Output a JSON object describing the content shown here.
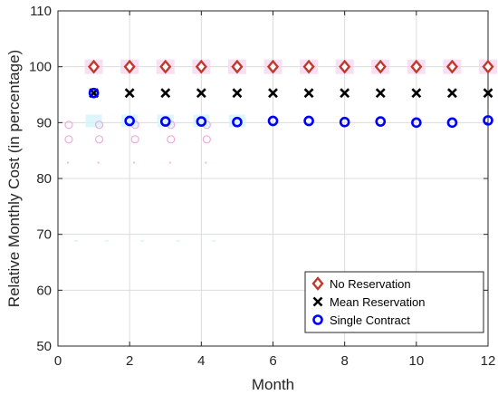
{
  "chart_data": {
    "type": "scatter",
    "title": "",
    "xlabel": "Month",
    "ylabel": "Relative Monthly Cost (in percentage)",
    "xlim": [
      0,
      12
    ],
    "ylim": [
      50,
      110
    ],
    "xticks": [
      0,
      2,
      4,
      6,
      8,
      10,
      12
    ],
    "yticks": [
      50,
      60,
      70,
      80,
      90,
      100,
      110
    ],
    "grid": true,
    "legend_position": "bottom-right",
    "series": [
      {
        "name": "No Reservation",
        "marker": "diamond",
        "color": "#c0392b",
        "x": [
          1,
          2,
          3,
          4,
          5,
          6,
          7,
          8,
          9,
          10,
          11,
          12
        ],
        "y": [
          100,
          100,
          100,
          100,
          100,
          100,
          100,
          100,
          100,
          100,
          100,
          100
        ]
      },
      {
        "name": "Mean Reservation",
        "marker": "x",
        "color": "#000000",
        "x": [
          1,
          2,
          3,
          4,
          5,
          6,
          7,
          8,
          9,
          10,
          11,
          12
        ],
        "y": [
          95.3,
          95.3,
          95.3,
          95.3,
          95.3,
          95.3,
          95.3,
          95.3,
          95.3,
          95.3,
          95.3,
          95.3
        ]
      },
      {
        "name": "Single Contract",
        "marker": "circle",
        "color": "#0000ff",
        "x": [
          1,
          2,
          3,
          4,
          5,
          6,
          7,
          8,
          9,
          10,
          11,
          12
        ],
        "y": [
          95.3,
          90.3,
          90.2,
          90.2,
          90.1,
          90.3,
          90.3,
          90.1,
          90.2,
          90.0,
          90.0,
          90.4
        ]
      }
    ]
  }
}
